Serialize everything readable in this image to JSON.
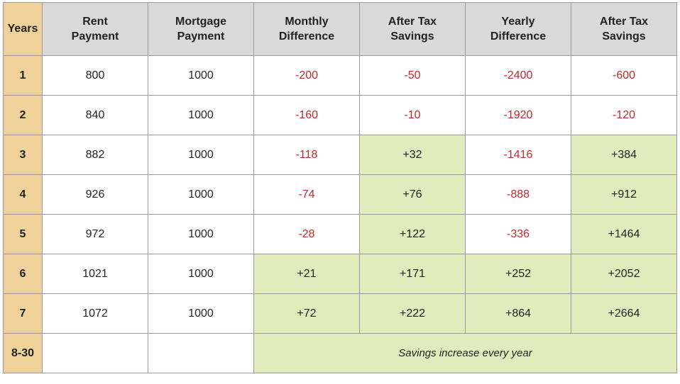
{
  "table": {
    "header": [
      "Years",
      "Rent Payment",
      "Mortgage Payment",
      "Monthly Difference",
      "After Tax Savings",
      "Yearly Difference",
      "After Tax Savings"
    ],
    "rows": [
      [
        "1",
        "800",
        "1000",
        "-200",
        "-50",
        "-2400",
        "-600"
      ],
      [
        "2",
        "840",
        "1000",
        "-160",
        "-10",
        "-1920",
        "-120"
      ],
      [
        "3",
        "882",
        "1000",
        "-118",
        "+32",
        "-1416",
        "+384"
      ],
      [
        "4",
        "926",
        "1000",
        "-74",
        "+76",
        "-888",
        "+912"
      ],
      [
        "5",
        "972",
        "1000",
        "-28",
        "+122",
        "-336",
        "+1464"
      ],
      [
        "6",
        "1021",
        "1000",
        "+21",
        "+171",
        "+252",
        "+2052"
      ],
      [
        "7",
        "1072",
        "1000",
        "+72",
        "+222",
        "+864",
        "+2664"
      ]
    ],
    "footer": {
      "year": "8-30",
      "note": "Savings increase every year"
    }
  }
}
